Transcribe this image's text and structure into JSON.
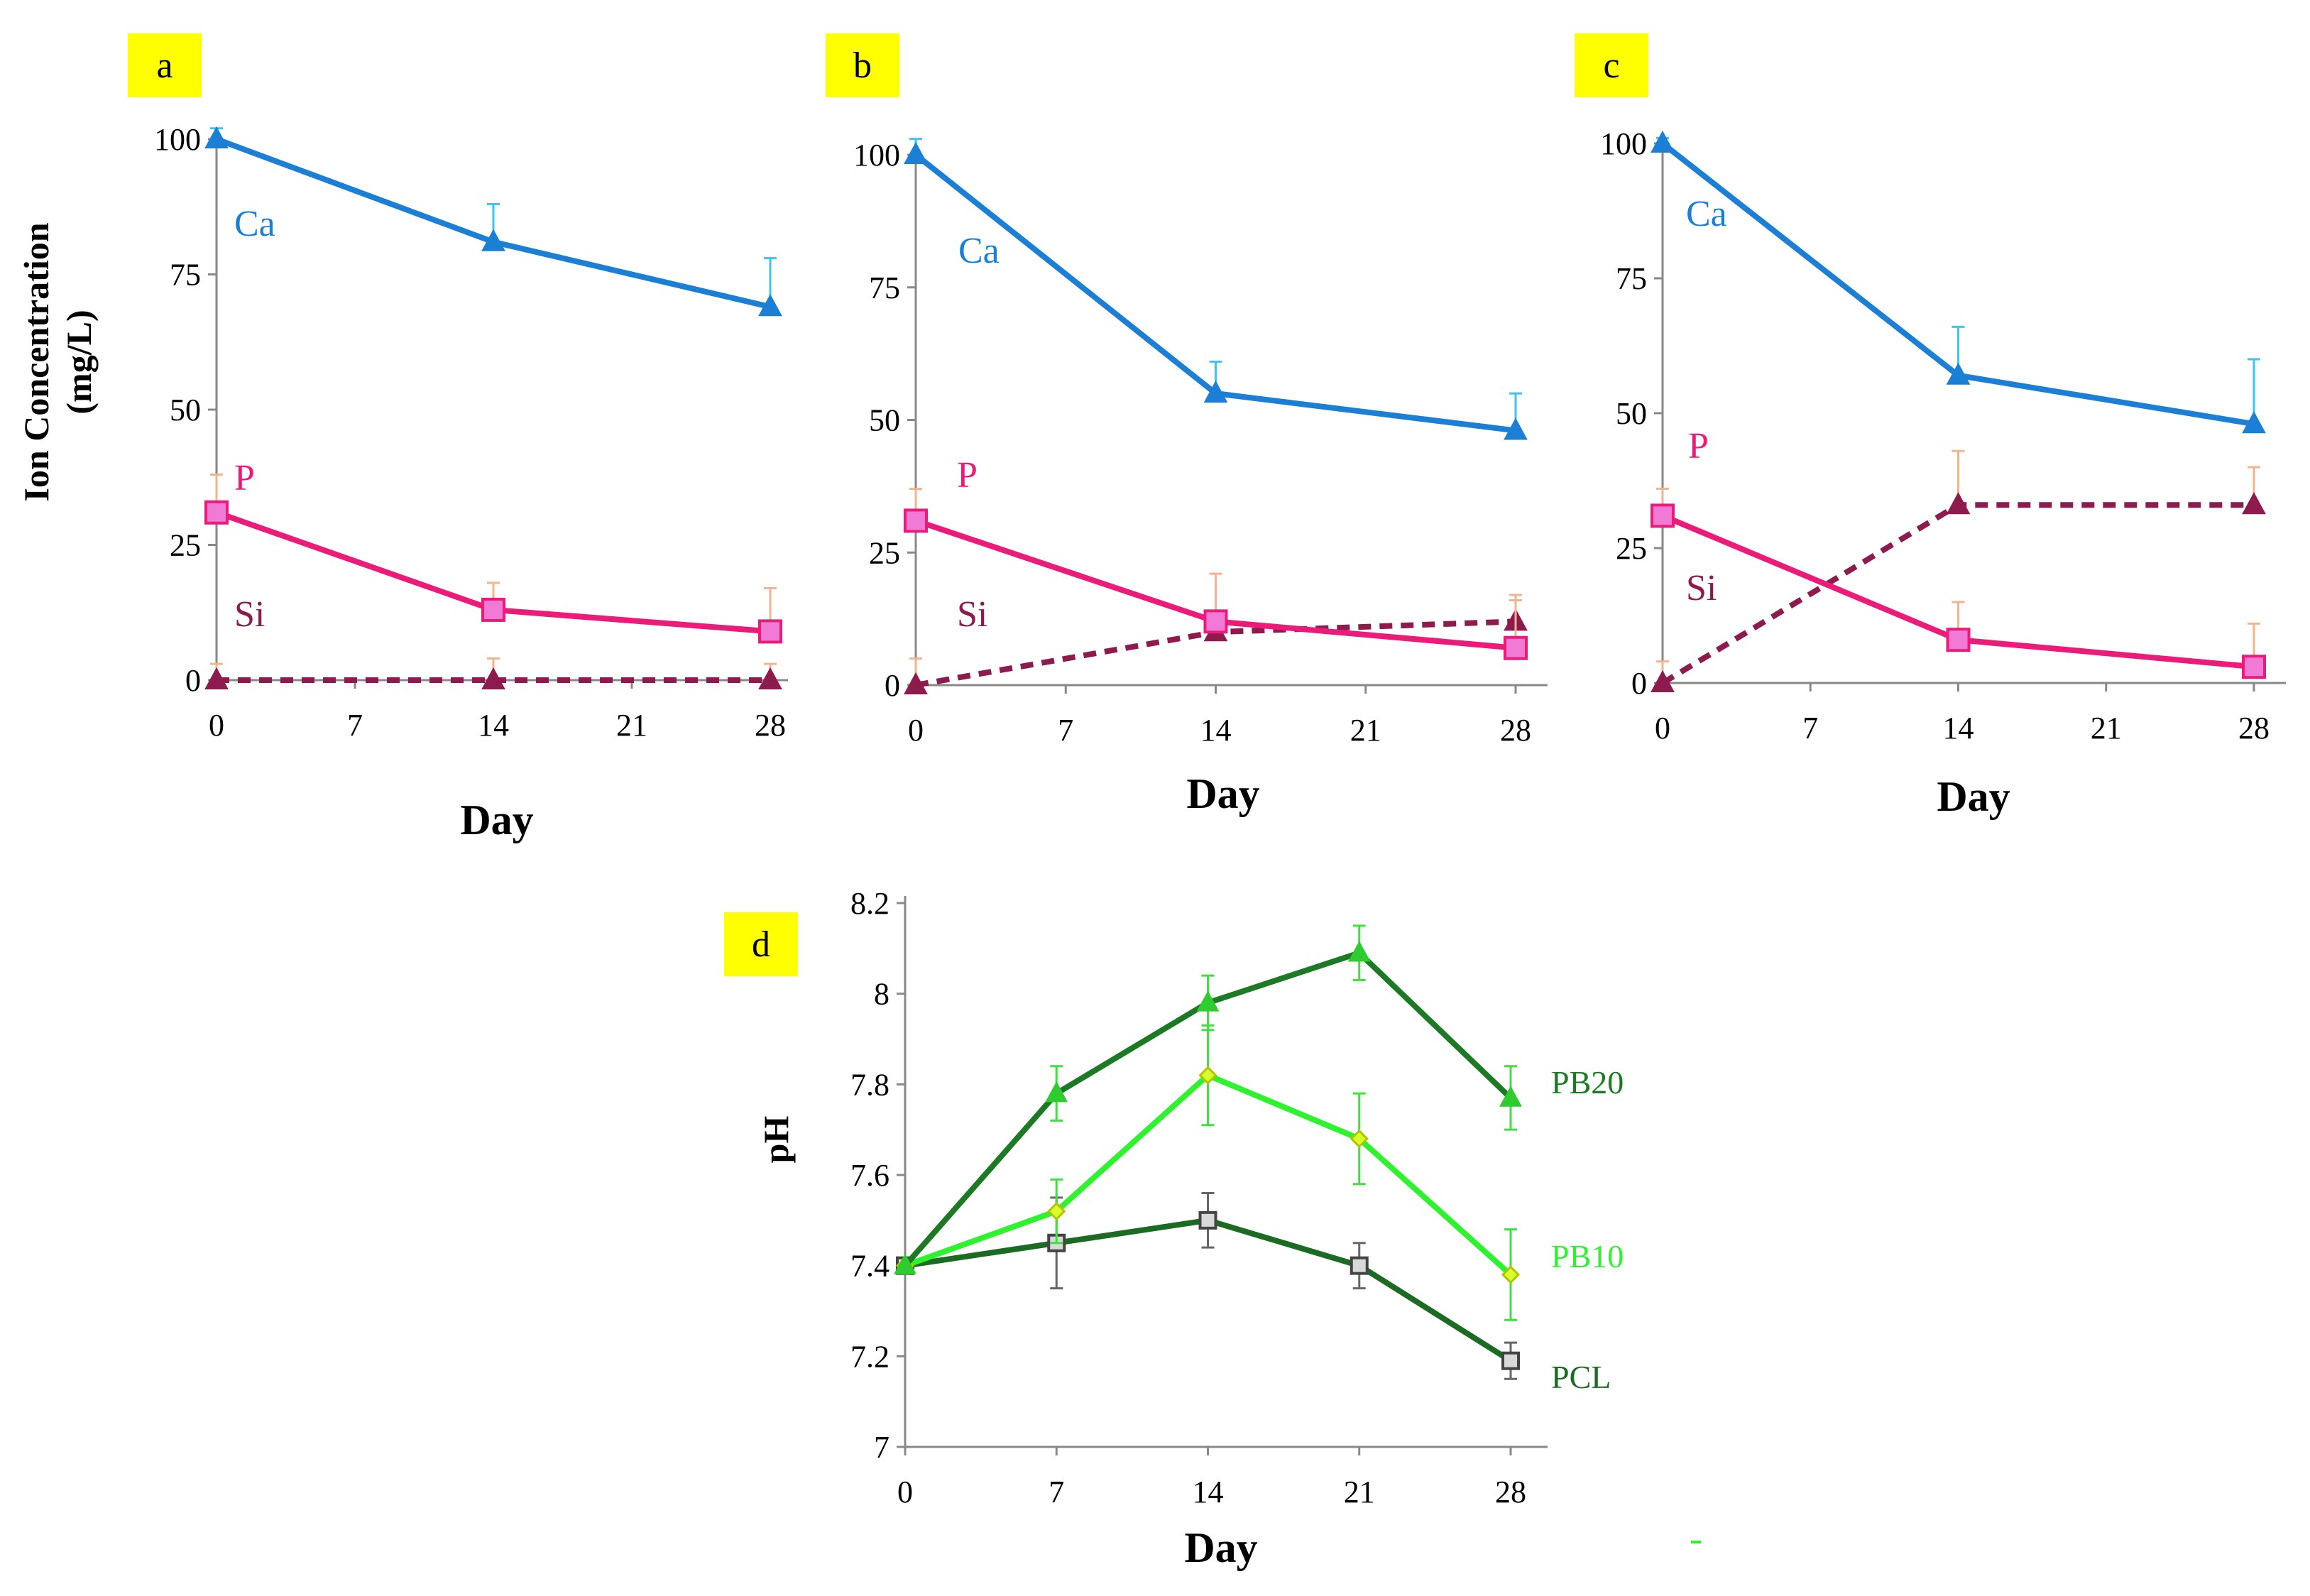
{
  "figure": {
    "panels": [
      "a",
      "b",
      "c",
      "d"
    ],
    "y_title_line1": "Ion Concentration",
    "y_title_line2": "(mg/L)",
    "x_title": "Day"
  },
  "colors": {
    "ca": "#1b7fd6",
    "ca_err": "#3fc3f0",
    "p": "#ec1a78",
    "p_marker": "#f07ad6",
    "p_err": "#f2b48e",
    "si": "#8d1b4e",
    "pb20": "#1b7a23",
    "pb20_marker": "#2ecc2e",
    "pb20_err": "#40e040",
    "pb10": "#2ef22e",
    "pb10_marker": "#d8ff2a",
    "pcl": "#1b6b23",
    "pcl_marker": "#d9d9d9",
    "pcl_err": "#666666",
    "badge": "#ffff00"
  },
  "chart_data": [
    {
      "id": "a",
      "type": "line",
      "title": "a",
      "xlabel": "Day",
      "ylabel": "Ion Concentration (mg/L)",
      "xlim": [
        0,
        28
      ],
      "ylim": [
        0,
        100
      ],
      "xticks": [
        0,
        7,
        14,
        21,
        28
      ],
      "yticks": [
        0,
        25,
        50,
        75,
        100
      ],
      "x": [
        0,
        14,
        28
      ],
      "series": [
        {
          "name": "Ca",
          "values": [
            100,
            81,
            69
          ],
          "errors": [
            2,
            7,
            9
          ]
        },
        {
          "name": "P",
          "values": [
            31,
            13,
            9
          ],
          "errors": [
            7,
            5,
            8
          ]
        },
        {
          "name": "Si",
          "values": [
            0,
            0,
            0
          ],
          "errors": [
            3,
            4,
            3
          ]
        }
      ]
    },
    {
      "id": "b",
      "type": "line",
      "title": "b",
      "xlabel": "Day",
      "xlim": [
        0,
        28
      ],
      "ylim": [
        0,
        100
      ],
      "xticks": [
        0,
        7,
        14,
        21,
        28
      ],
      "yticks": [
        0,
        25,
        50,
        75,
        100
      ],
      "x": [
        0,
        14,
        28
      ],
      "series": [
        {
          "name": "Ca",
          "values": [
            100,
            55,
            48
          ],
          "errors": [
            3,
            6,
            7
          ]
        },
        {
          "name": "P",
          "values": [
            31,
            12,
            7
          ],
          "errors": [
            6,
            9,
            9
          ]
        },
        {
          "name": "Si",
          "values": [
            0,
            10,
            12
          ],
          "errors": [
            5,
            3,
            5
          ]
        }
      ]
    },
    {
      "id": "c",
      "type": "line",
      "title": "c",
      "xlabel": "Day",
      "xlim": [
        0,
        28
      ],
      "ylim": [
        0,
        100
      ],
      "xticks": [
        0,
        7,
        14,
        21,
        28
      ],
      "yticks": [
        0,
        25,
        50,
        75,
        100
      ],
      "x": [
        0,
        14,
        28
      ],
      "series": [
        {
          "name": "Ca",
          "values": [
            100,
            57,
            48
          ],
          "errors": [
            1,
            9,
            12
          ]
        },
        {
          "name": "P",
          "values": [
            31,
            8,
            3
          ],
          "errors": [
            5,
            7,
            8
          ]
        },
        {
          "name": "Si",
          "values": [
            0,
            33,
            33
          ],
          "errors": [
            4,
            10,
            7
          ]
        }
      ]
    },
    {
      "id": "d",
      "type": "line",
      "title": "d",
      "xlabel": "Day",
      "ylabel": "pH",
      "xlim": [
        0,
        28
      ],
      "ylim": [
        7,
        8.2
      ],
      "xticks": [
        0,
        7,
        14,
        21,
        28
      ],
      "yticks": [
        7,
        7.2,
        7.4,
        7.6,
        7.8,
        8,
        8.2
      ],
      "x": [
        0,
        7,
        14,
        21,
        28
      ],
      "series": [
        {
          "name": "PB20",
          "values": [
            7.4,
            7.78,
            7.98,
            8.09,
            7.77
          ],
          "errors": [
            0,
            0.06,
            0.06,
            0.06,
            0.07
          ]
        },
        {
          "name": "PB10",
          "values": [
            7.4,
            7.52,
            7.82,
            7.68,
            7.38
          ],
          "errors": [
            0,
            0.07,
            0.11,
            0.1,
            0.1
          ]
        },
        {
          "name": "PCL",
          "values": [
            7.4,
            7.45,
            7.5,
            7.4,
            7.19
          ],
          "errors": [
            0,
            0.1,
            0.06,
            0.05,
            0.04
          ]
        }
      ]
    }
  ]
}
